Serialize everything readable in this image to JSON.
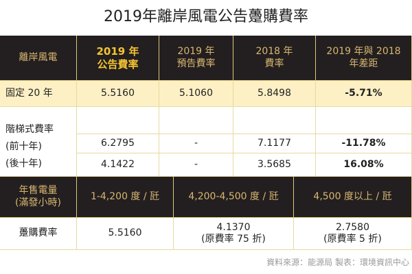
{
  "title": "2019年離岸風電公告躉購費率",
  "header": {
    "c0": "離岸風電",
    "c1a": "2019 年",
    "c1b": "公告費率",
    "c2a": "2019 年",
    "c2b": "預告費率",
    "c3a": "2018 年",
    "c3b": "費率",
    "c4a": "2019 年與 2018",
    "c4b": "年差距"
  },
  "fixed": {
    "label": "固定 20 年",
    "v1": "5.5160",
    "v2": "5.1060",
    "v3": "5.8498",
    "v4": "-5.71%"
  },
  "tiered": {
    "label": "階梯式費率",
    "first_label": "(前十年)",
    "last_label": "(後十年)",
    "first": {
      "v1": "6.2795",
      "v2": "-",
      "v3": "7.1177",
      "v4": "-11.78%"
    },
    "last": {
      "v1": "4.1422",
      "v2": "-",
      "v3": "3.5685",
      "v4": "16.08%"
    }
  },
  "header2": {
    "c0a": "年售電量",
    "c0b": "(滿發小時)",
    "c1": "1-4,200 度 / 瓩",
    "c2": "4,200-4,500 度 / 瓩",
    "c3": "4,500 度以上 / 瓩"
  },
  "purchase": {
    "label": "躉購費率",
    "v1": "5.5160",
    "v2a": "4.1370",
    "v2b": "(原費率 75 折)",
    "v3a": "2.7580",
    "v3b": "(原費率 5 折)"
  },
  "source": "資料來源：能源局 製表：環境資訊中心"
}
